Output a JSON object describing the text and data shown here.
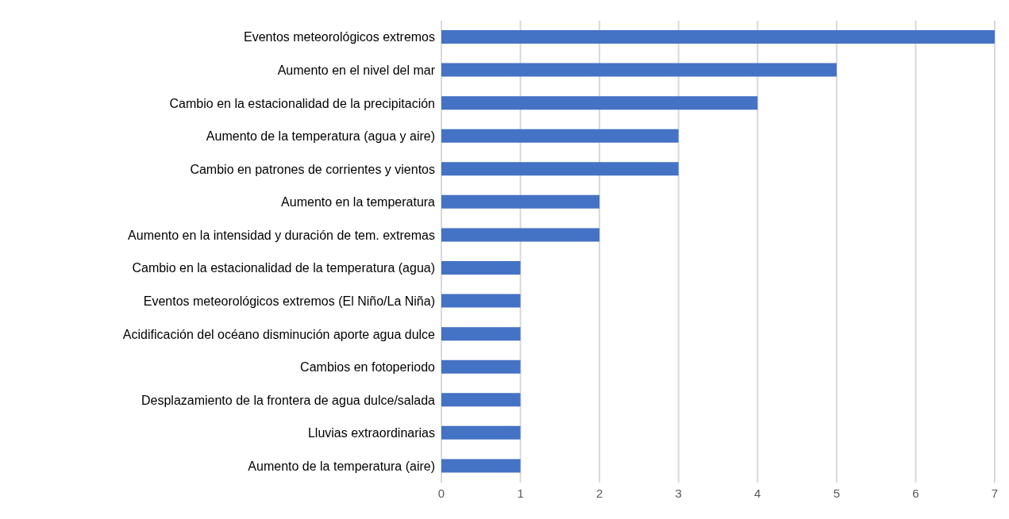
{
  "chart_data": {
    "type": "bar",
    "orientation": "horizontal",
    "categories": [
      "Eventos meteorológicos extremos",
      "Aumento en el nivel del mar",
      "Cambio en la estacionalidad de la precipitación",
      "Aumento de la temperatura (agua y aire)",
      "Cambio en patrones de corrientes y vientos",
      "Aumento en la temperatura",
      "Aumento en la intensidad y duración de tem. extremas",
      "Cambio en la estacionalidad de la temperatura (agua)",
      "Eventos meteorológicos extremos (El Niño/La Niña)",
      "Acidificación del océano disminución aporte agua dulce",
      "Cambios en fotoperiodo",
      "Desplazamiento de la frontera de agua dulce/salada",
      "Lluvias extraordinarias",
      "Aumento de la temperatura (aire)"
    ],
    "values": [
      7,
      5,
      4,
      3,
      3,
      2,
      2,
      1,
      1,
      1,
      1,
      1,
      1,
      1
    ],
    "color": "#4472c4",
    "xlim": [
      0,
      7
    ],
    "xticks": [
      0,
      1,
      2,
      3,
      4,
      5,
      6,
      7
    ],
    "grid": "x",
    "legend": false
  }
}
